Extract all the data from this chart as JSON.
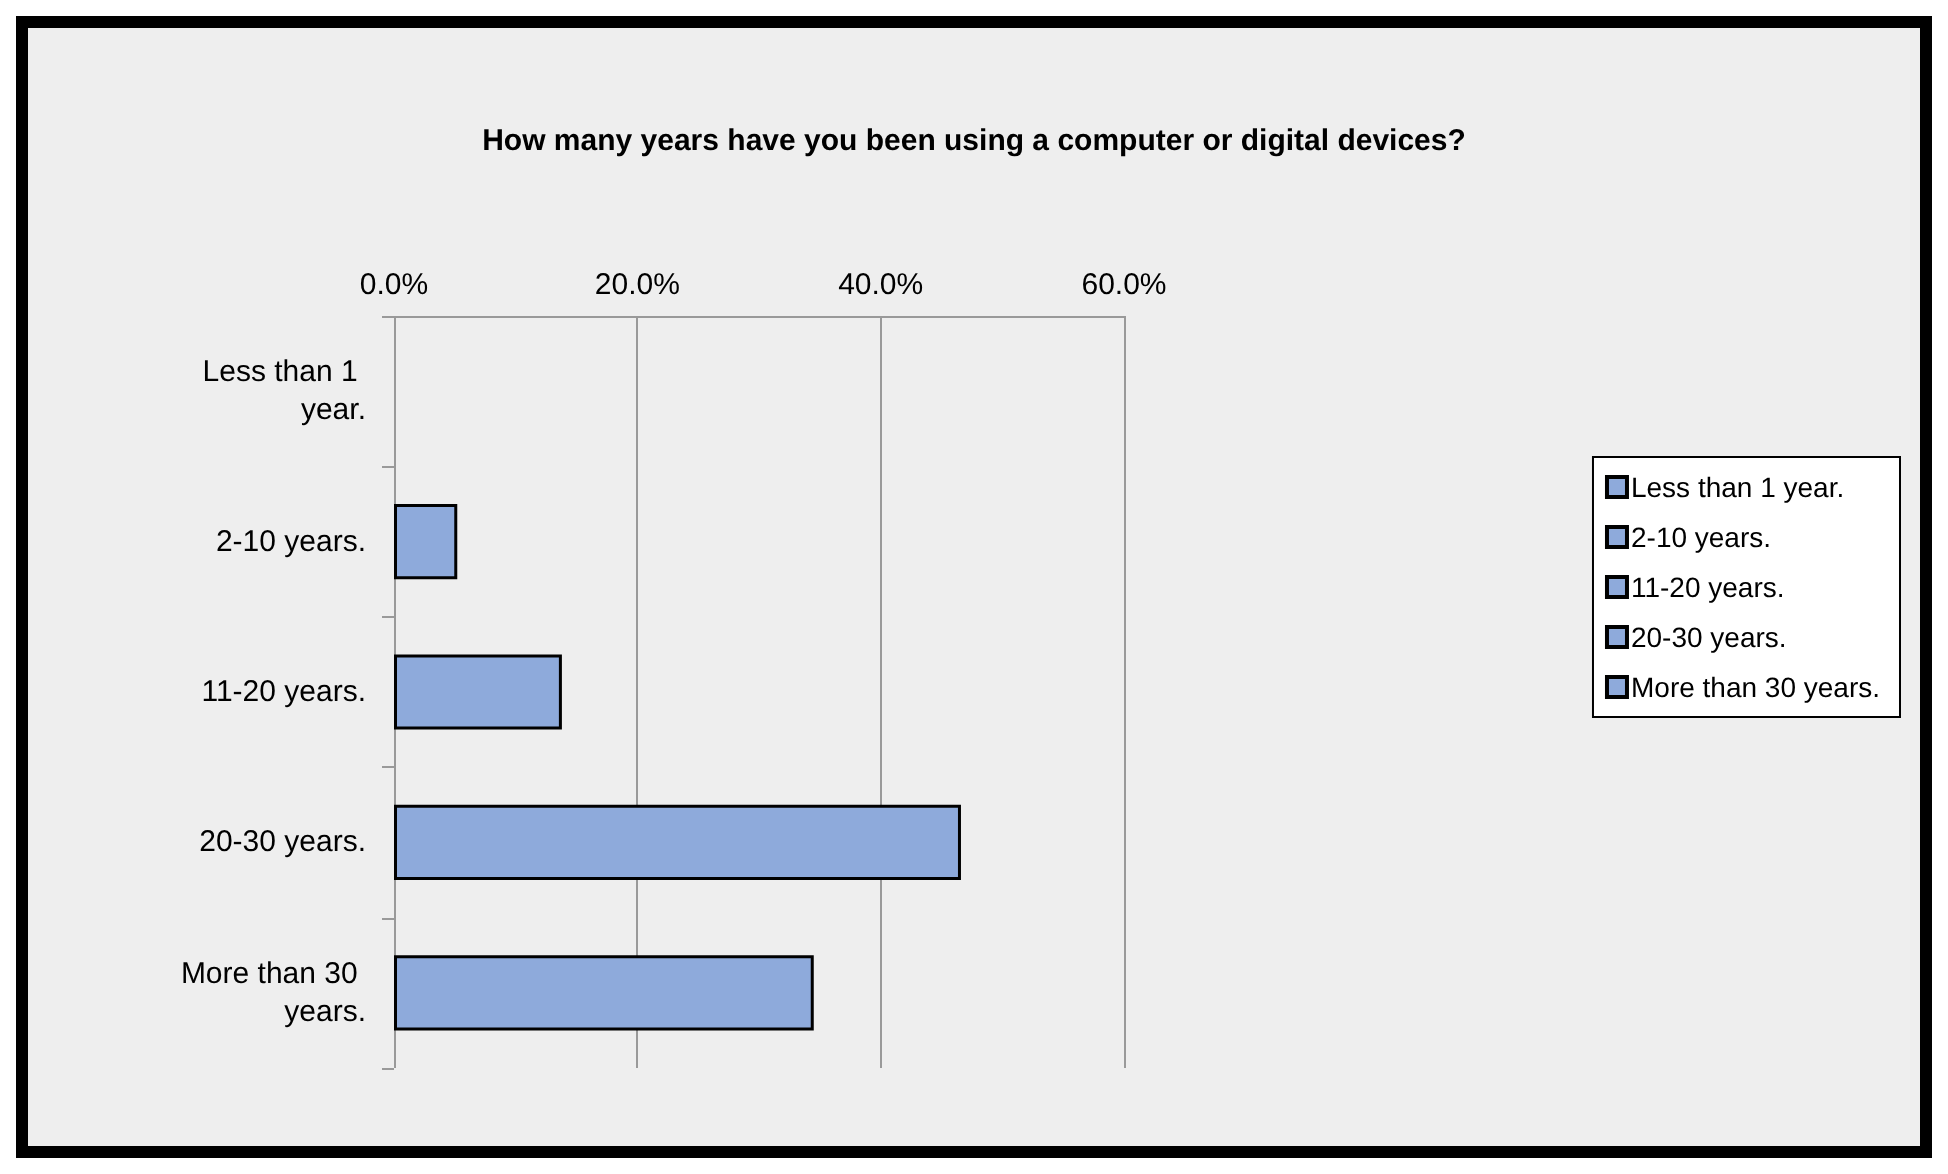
{
  "chart_data": {
    "type": "bar",
    "orientation": "horizontal",
    "stacked": true,
    "title": "How many years have you been using a computer or digital devices?",
    "categories": [
      "Less than 1 year.",
      "2-10 years.",
      "11-20 years.",
      "20-30 years.",
      "More than 30 years."
    ],
    "series": [
      {
        "name": "Less than 1 year.",
        "color": "#8eaadb",
        "values": [
          0,
          null,
          null,
          null,
          null
        ]
      },
      {
        "name": "2-10 years.",
        "color": "#8eaadb",
        "values": [
          null,
          5.2,
          null,
          null,
          null
        ]
      },
      {
        "name": "11-20 years.",
        "color": "#8eaadb",
        "values": [
          null,
          null,
          13.8,
          null,
          null
        ]
      },
      {
        "name": "20-30 years.",
        "color": "#8eaadb",
        "values": [
          null,
          null,
          null,
          46.6,
          null
        ]
      },
      {
        "name": "More than 30 years.",
        "color": "#8eaadb",
        "values": [
          null,
          null,
          null,
          null,
          34.5
        ]
      }
    ],
    "xlim": [
      0,
      60
    ],
    "xticks": [
      {
        "value": 0,
        "label": "0.0%"
      },
      {
        "value": 20,
        "label": "20.0%"
      },
      {
        "value": 40,
        "label": "40.0%"
      },
      {
        "value": 60,
        "label": "60.0%"
      }
    ],
    "grid": "x",
    "legend": "right"
  }
}
